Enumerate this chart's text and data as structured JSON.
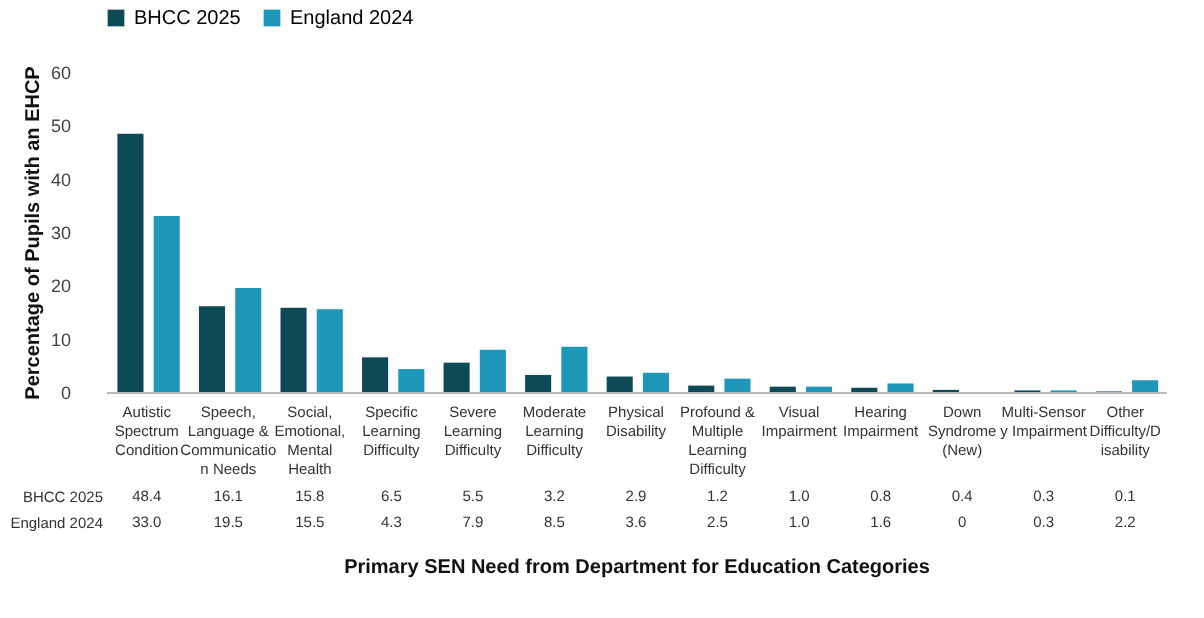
{
  "chart_data": {
    "type": "bar",
    "xlabel": "Primary SEN Need from Department for Education Categories",
    "ylabel": "Percentage of Pupils with an EHCP",
    "categories": [
      "Autistic Spectrum Condition",
      "Speech, Language & Communication Needs",
      "Social, Emotional, Mental Health",
      "Specific Learning Difficulty",
      "Severe Learning Difficulty",
      "Moderate Learning Difficulty",
      "Physical Disability",
      "Profound & Multiple Learning Difficulty",
      "Visual Impairment",
      "Hearing Impairment",
      "Down Syndrome (New)",
      "Multi-Sensory Impairment",
      "Other Difficulty/Disability"
    ],
    "series": [
      {
        "name": "BHCC 2025",
        "color": "#0e4a55",
        "values": [
          48.4,
          16.1,
          15.8,
          6.5,
          5.5,
          3.2,
          2.9,
          1.2,
          1.0,
          0.8,
          0.4,
          0.3,
          0.1
        ],
        "value_labels": [
          "48.4",
          "16.1",
          "15.8",
          "6.5",
          "5.5",
          "3.2",
          "2.9",
          "1.2",
          "1.0",
          "0.8",
          "0.4",
          "0.3",
          "0.1"
        ]
      },
      {
        "name": "England 2024",
        "color": "#1e97b8",
        "values": [
          33.0,
          19.5,
          15.5,
          4.3,
          7.9,
          8.5,
          3.6,
          2.5,
          1.0,
          1.6,
          0,
          0.3,
          2.2
        ],
        "value_labels": [
          "33.0",
          "19.5",
          "15.5",
          "4.3",
          "7.9",
          "8.5",
          "3.6",
          "2.5",
          "1.0",
          "1.6",
          "0",
          "0.3",
          "2.2"
        ]
      }
    ],
    "ylim": [
      0,
      60
    ],
    "yticks": [
      0,
      10,
      20,
      30,
      40,
      50,
      60
    ],
    "grid": false,
    "legend": "top"
  }
}
